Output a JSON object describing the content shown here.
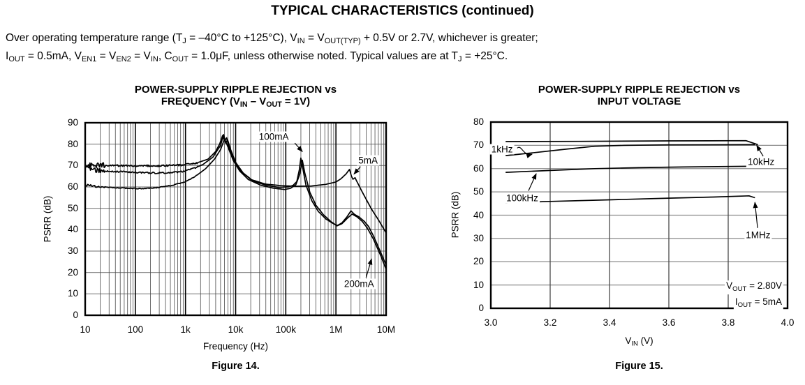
{
  "page": {
    "title": "TYPICAL CHARACTERISTICS (continued)"
  },
  "conditions": {
    "line1": [
      {
        "t": "Over operating temperature range (T"
      },
      {
        "s": "J"
      },
      {
        "t": " = –40°C to +125°C), V"
      },
      {
        "s": "IN"
      },
      {
        "t": " = V"
      },
      {
        "s": "OUT(TYP)"
      },
      {
        "t": " + 0.5V or 2.7V, whichever is greater;"
      }
    ],
    "line2": [
      {
        "t": "I"
      },
      {
        "s": "OUT"
      },
      {
        "t": " = 0.5mA, V"
      },
      {
        "s": "EN1"
      },
      {
        "t": " = V"
      },
      {
        "s": "EN2"
      },
      {
        "t": " = V"
      },
      {
        "s": "IN"
      },
      {
        "t": ", C"
      },
      {
        "s": "OUT"
      },
      {
        "t": " = 1.0μF, unless otherwise noted. Typical values are at T"
      },
      {
        "s": "J"
      },
      {
        "t": " = +25°C."
      }
    ]
  },
  "chart_data": [
    {
      "figure": "Figure 14.",
      "type": "line",
      "title_lines": [
        [
          {
            "t": "POWER-SUPPLY RIPPLE REJECTION vs"
          }
        ],
        [
          {
            "t": "FREQUENCY (V"
          },
          {
            "s": "IN"
          },
          {
            "t": " – V"
          },
          {
            "s": "OUT"
          },
          {
            "t": " = 1V)"
          }
        ]
      ],
      "xlabel": [
        {
          "t": "Frequency (Hz)"
        }
      ],
      "ylabel": "PSRR (dB)",
      "xscale": "log10",
      "x_unit": "Hz, points stored as log10(f)",
      "xlim": [
        1,
        7
      ],
      "ylim": [
        0,
        90
      ],
      "grid": true,
      "xticks": [
        {
          "log10": 1,
          "label": "10"
        },
        {
          "log10": 2,
          "label": "100"
        },
        {
          "log10": 3,
          "label": "1k"
        },
        {
          "log10": 4,
          "label": "10k"
        },
        {
          "log10": 5,
          "label": "100k"
        },
        {
          "log10": 6,
          "label": "1M"
        },
        {
          "log10": 7,
          "label": "10M"
        }
      ],
      "yticks": [
        {
          "db": 0,
          "label": "0"
        },
        {
          "db": 10,
          "label": "10"
        },
        {
          "db": 20,
          "label": "20"
        },
        {
          "db": 30,
          "label": "30"
        },
        {
          "db": 40,
          "label": "40"
        },
        {
          "db": 50,
          "label": "50"
        },
        {
          "db": 60,
          "label": "60"
        },
        {
          "db": 70,
          "label": "70"
        },
        {
          "db": 80,
          "label": "80"
        },
        {
          "db": 90,
          "label": "90"
        }
      ],
      "series": [
        {
          "name": "5mA",
          "noise_db": 0.8,
          "noisy_below_log10": 3.25,
          "points": [
            [
              1.0,
              70.0
            ],
            [
              1.3,
              70.2
            ],
            [
              1.6,
              70.0
            ],
            [
              2.0,
              70.0
            ],
            [
              2.5,
              69.8
            ],
            [
              2.9,
              70.2
            ],
            [
              3.2,
              71.0
            ],
            [
              3.45,
              73.0
            ],
            [
              3.6,
              76.5
            ],
            [
              3.68,
              80.0
            ],
            [
              3.74,
              84.0
            ],
            [
              3.78,
              81.5
            ],
            [
              3.82,
              83.0
            ],
            [
              3.86,
              79.0
            ],
            [
              3.95,
              73.5
            ],
            [
              4.1,
              67.5
            ],
            [
              4.3,
              63.5
            ],
            [
              4.6,
              61.3
            ],
            [
              4.9,
              60.6
            ],
            [
              5.2,
              60.3
            ],
            [
              5.5,
              60.4
            ],
            [
              5.8,
              61.2
            ],
            [
              6.0,
              62.3
            ],
            [
              6.1,
              63.8
            ],
            [
              6.2,
              66.0
            ],
            [
              6.27,
              68.2
            ],
            [
              6.31,
              65.0
            ],
            [
              6.34,
              63.6
            ],
            [
              6.38,
              64.3
            ],
            [
              6.44,
              61.5
            ],
            [
              6.55,
              56.5
            ],
            [
              6.7,
              50.0
            ],
            [
              6.85,
              44.5
            ],
            [
              7.0,
              38.5
            ]
          ]
        },
        {
          "name": "100mA",
          "noise_db": 0.7,
          "noisy_below_log10": 3.25,
          "points": [
            [
              1.0,
              70.5
            ],
            [
              1.15,
              68.0
            ],
            [
              1.4,
              67.3
            ],
            [
              1.8,
              67.0
            ],
            [
              2.2,
              66.6
            ],
            [
              2.6,
              66.5
            ],
            [
              2.95,
              67.2
            ],
            [
              3.15,
              68.5
            ],
            [
              3.35,
              70.5
            ],
            [
              3.55,
              74.0
            ],
            [
              3.7,
              79.5
            ],
            [
              3.76,
              84.5
            ],
            [
              3.8,
              80.5
            ],
            [
              3.84,
              82.0
            ],
            [
              3.9,
              77.5
            ],
            [
              4.0,
              71.5
            ],
            [
              4.15,
              66.5
            ],
            [
              4.35,
              62.8
            ],
            [
              4.6,
              60.8
            ],
            [
              4.85,
              59.8
            ],
            [
              5.05,
              60.0
            ],
            [
              5.15,
              60.8
            ],
            [
              5.22,
              62.5
            ],
            [
              5.27,
              68.0
            ],
            [
              5.3,
              73.5
            ],
            [
              5.34,
              68.5
            ],
            [
              5.4,
              61.0
            ],
            [
              5.52,
              53.5
            ],
            [
              5.65,
              48.5
            ],
            [
              5.8,
              45.0
            ],
            [
              5.95,
              42.8
            ],
            [
              6.03,
              42.0
            ],
            [
              6.12,
              43.2
            ],
            [
              6.22,
              46.0
            ],
            [
              6.3,
              48.8
            ],
            [
              6.37,
              47.2
            ],
            [
              6.47,
              45.8
            ],
            [
              6.57,
              43.8
            ],
            [
              6.65,
              41.5
            ],
            [
              6.75,
              37.0
            ],
            [
              6.88,
              30.0
            ],
            [
              7.0,
              23.5
            ]
          ]
        },
        {
          "name": "200mA",
          "noise_db": 0.35,
          "noisy_below_log10": 3.25,
          "points": [
            [
              1.0,
              61.0
            ],
            [
              1.3,
              60.0
            ],
            [
              1.6,
              59.6
            ],
            [
              1.9,
              59.3
            ],
            [
              2.15,
              59.2
            ],
            [
              2.45,
              59.7
            ],
            [
              2.75,
              60.8
            ],
            [
              3.0,
              62.5
            ],
            [
              3.2,
              65.0
            ],
            [
              3.4,
              68.5
            ],
            [
              3.58,
              73.0
            ],
            [
              3.7,
              77.5
            ],
            [
              3.78,
              82.5
            ],
            [
              3.85,
              78.5
            ],
            [
              3.95,
              72.5
            ],
            [
              4.08,
              67.5
            ],
            [
              4.25,
              63.5
            ],
            [
              4.5,
              60.8
            ],
            [
              4.75,
              59.4
            ],
            [
              4.98,
              58.8
            ],
            [
              5.1,
              59.4
            ],
            [
              5.2,
              61.0
            ],
            [
              5.28,
              66.0
            ],
            [
              5.33,
              72.5
            ],
            [
              5.38,
              66.5
            ],
            [
              5.48,
              57.5
            ],
            [
              5.6,
              51.5
            ],
            [
              5.75,
              47.0
            ],
            [
              5.9,
              43.8
            ],
            [
              6.02,
              41.8
            ],
            [
              6.12,
              42.8
            ],
            [
              6.22,
              45.2
            ],
            [
              6.32,
              47.3
            ],
            [
              6.42,
              46.0
            ],
            [
              6.52,
              44.0
            ],
            [
              6.62,
              41.0
            ],
            [
              6.75,
              35.5
            ],
            [
              6.9,
              27.5
            ],
            [
              7.0,
              21.5
            ]
          ]
        }
      ],
      "annotations": [
        {
          "label": "100mA",
          "x": 4.76,
          "y_db": 83.5,
          "arrow": {
            "from": [
              5.18,
              80.5
            ],
            "to": [
              5.33,
              76.5
            ]
          }
        },
        {
          "label": "5mA",
          "x": 6.64,
          "y_db": 72.4,
          "arrow": {
            "from": [
              6.49,
              69.5
            ],
            "to": [
              6.36,
              66.0
            ]
          }
        },
        {
          "label": "200mA",
          "x": 6.46,
          "y_db": 14.7,
          "arrow": {
            "from": [
              6.6,
              17.6
            ],
            "to": [
              6.71,
              26.3
            ]
          }
        }
      ]
    },
    {
      "figure": "Figure 15.",
      "type": "line",
      "title_lines": [
        [
          {
            "t": "POWER-SUPPLY RIPPLE REJECTION vs"
          }
        ],
        [
          {
            "t": "INPUT VOLTAGE"
          }
        ]
      ],
      "xlabel": [
        {
          "t": "V"
        },
        {
          "s": "IN"
        },
        {
          "t": " (V)"
        }
      ],
      "ylabel": "PSRR (dB)",
      "xscale": "linear",
      "x_unit": "V",
      "xlim": [
        3.0,
        4.0
      ],
      "xtick_step": 0.2,
      "ylim": [
        0,
        80
      ],
      "grid": true,
      "xticks": [
        {
          "v": 3.0,
          "label": "3.0"
        },
        {
          "v": 3.2,
          "label": "3.2"
        },
        {
          "v": 3.4,
          "label": "3.4"
        },
        {
          "v": 3.6,
          "label": "3.6"
        },
        {
          "v": 3.8,
          "label": "3.8"
        },
        {
          "v": 4.0,
          "label": "4.0"
        }
      ],
      "yticks": [
        {
          "db": 0,
          "label": "0"
        },
        {
          "db": 10,
          "label": "10"
        },
        {
          "db": 20,
          "label": "20"
        },
        {
          "db": 30,
          "label": "30"
        },
        {
          "db": 40,
          "label": "40"
        },
        {
          "db": 50,
          "label": "50"
        },
        {
          "db": 60,
          "label": "60"
        },
        {
          "db": 70,
          "label": "70"
        },
        {
          "db": 80,
          "label": "80"
        }
      ],
      "series": [
        {
          "name": "10kHz",
          "points": [
            [
              3.05,
              71.6
            ],
            [
              3.3,
              71.7
            ],
            [
              3.6,
              71.9
            ],
            [
              3.86,
              72.0
            ],
            [
              3.9,
              70.3
            ]
          ]
        },
        {
          "name": "1kHz",
          "points": [
            [
              3.05,
              65.6
            ],
            [
              3.15,
              66.9
            ],
            [
              3.25,
              68.3
            ],
            [
              3.35,
              69.6
            ],
            [
              3.45,
              70.0
            ],
            [
              3.6,
              70.2
            ],
            [
              3.89,
              70.3
            ]
          ]
        },
        {
          "name": "100kHz",
          "points": [
            [
              3.05,
              58.4
            ],
            [
              3.2,
              59.2
            ],
            [
              3.35,
              60.0
            ],
            [
              3.5,
              60.4
            ],
            [
              3.65,
              60.7
            ],
            [
              3.88,
              61.0
            ]
          ]
        },
        {
          "name": "1MHz",
          "points": [
            [
              3.05,
              45.3
            ],
            [
              3.2,
              45.9
            ],
            [
              3.4,
              46.6
            ],
            [
              3.6,
              47.3
            ],
            [
              3.75,
              47.8
            ],
            [
              3.87,
              48.3
            ],
            [
              3.89,
              47.5
            ]
          ]
        }
      ],
      "annotations": [
        {
          "label": "1kHz",
          "x": 3.038,
          "y_db": 68.4,
          "arrow": {
            "from": [
              3.089,
              68.8
            ],
            "to": [
              3.139,
              66.2
            ],
            "wavy": true
          }
        },
        {
          "label": "10kHz",
          "x": 3.911,
          "y_db": 63.0,
          "arrow": {
            "from": [
              3.918,
              65.3
            ],
            "to": [
              3.896,
              70.0
            ]
          }
        },
        {
          "label": "100kHz",
          "x": 3.106,
          "y_db": 47.3,
          "arrow": {
            "from": [
              3.127,
              50.5
            ],
            "to": [
              3.153,
              57.8
            ]
          }
        },
        {
          "label": "1MHz",
          "x": 3.901,
          "y_db": 31.5,
          "arrow": {
            "from": [
              3.899,
              34.5
            ],
            "to": [
              3.89,
              45.5
            ]
          }
        },
        {
          "label": "VOUT = 2.80V",
          "segs": [
            {
              "t": "V"
            },
            {
              "s": "OUT"
            },
            {
              "t": " = 2.80V"
            }
          ],
          "x": 3.986,
          "y_db": 8.9,
          "align": "right"
        },
        {
          "label": "IOUT = 5mA",
          "segs": [
            {
              "t": "I"
            },
            {
              "s": "OUT"
            },
            {
              "t": " = 5mA"
            }
          ],
          "x": 3.986,
          "y_db": 2.2,
          "align": "right"
        }
      ]
    }
  ]
}
